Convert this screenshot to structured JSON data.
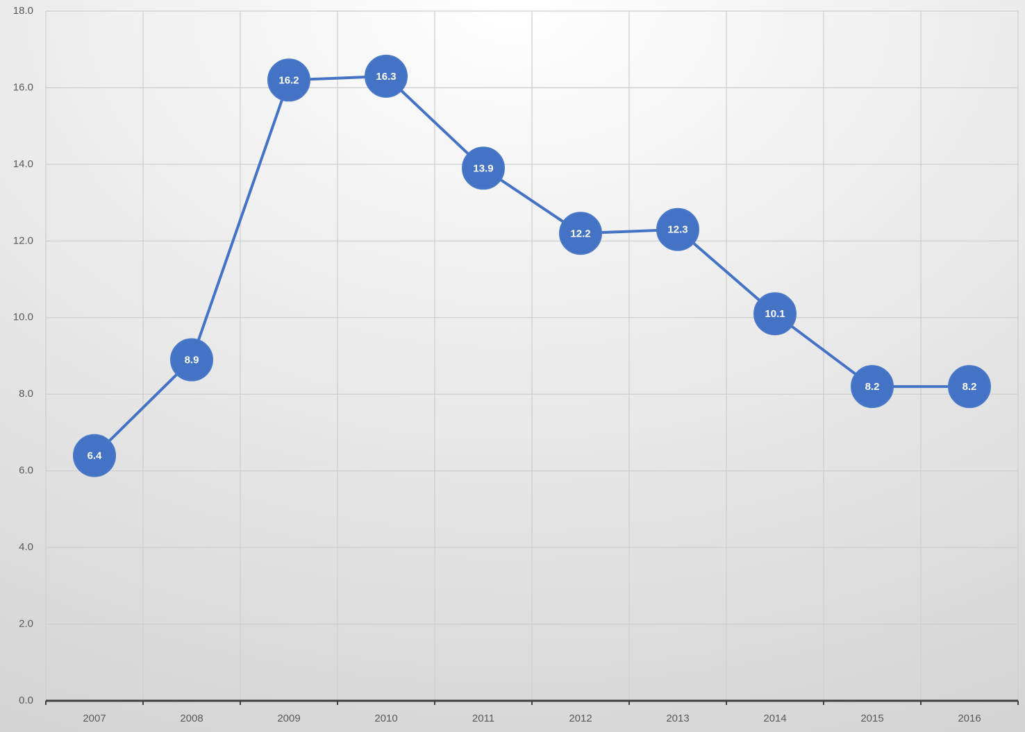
{
  "chart_data": {
    "type": "line",
    "categories": [
      "2007",
      "2008",
      "2009",
      "2010",
      "2011",
      "2012",
      "2013",
      "2014",
      "2015",
      "2016"
    ],
    "series": [
      {
        "color": "#4472c4",
        "values": [
          6.4,
          8.9,
          16.2,
          16.3,
          13.9,
          12.2,
          12.3,
          10.1,
          8.2,
          8.2
        ]
      }
    ],
    "ylim": [
      0,
      18
    ],
    "yticks": [
      {
        "value": 0,
        "label": "0.0"
      },
      {
        "value": 2,
        "label": "2.0"
      },
      {
        "value": 4,
        "label": "4.0"
      },
      {
        "value": 6,
        "label": "6.0"
      },
      {
        "value": 8,
        "label": "8.0"
      },
      {
        "value": 10,
        "label": "10.0"
      },
      {
        "value": 12,
        "label": "12.0"
      },
      {
        "value": 14,
        "label": "14.0"
      },
      {
        "value": 16,
        "label": "16.0"
      },
      {
        "value": 18,
        "label": "18.0"
      }
    ],
    "grid": true
  }
}
